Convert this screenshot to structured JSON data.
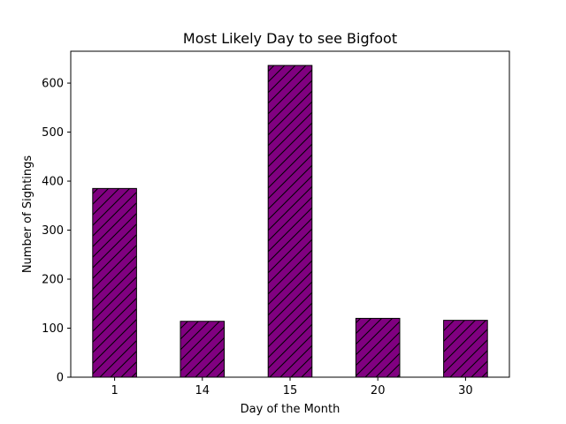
{
  "chart_data": {
    "type": "bar",
    "title": "Most Likely Day to see Bigfoot",
    "xlabel": "Day of the Month",
    "ylabel": "Number of Sightings",
    "categories": [
      "1",
      "14",
      "15",
      "20",
      "30"
    ],
    "values": [
      385,
      114,
      636,
      120,
      116
    ],
    "ylim": [
      0,
      665
    ],
    "yticks": [
      0,
      100,
      200,
      300,
      400,
      500,
      600
    ],
    "grid": false,
    "bar_color": "#800080",
    "edge_color": "#000000",
    "hatch": "///"
  }
}
